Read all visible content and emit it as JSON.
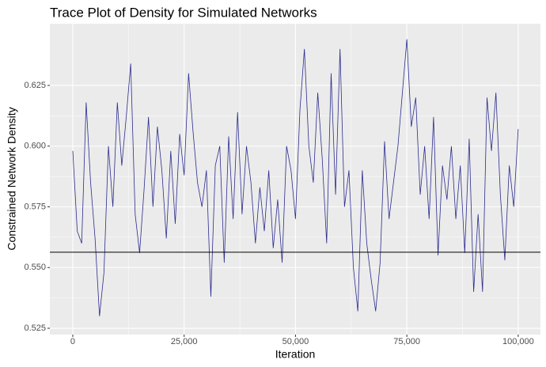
{
  "chart_data": {
    "type": "line",
    "title": "Trace Plot of Density for Simulated Networks",
    "x_label": "Iteration",
    "y_label": "Constrained Network Density",
    "x": [
      0,
      1000,
      2000,
      3000,
      4000,
      5000,
      6000,
      7000,
      8000,
      9000,
      10000,
      11000,
      12000,
      13000,
      14000,
      15000,
      16000,
      17000,
      18000,
      19000,
      20000,
      21000,
      22000,
      23000,
      24000,
      25000,
      26000,
      27000,
      28000,
      29000,
      30000,
      31000,
      32000,
      33000,
      34000,
      35000,
      36000,
      37000,
      38000,
      39000,
      40000,
      41000,
      42000,
      43000,
      44000,
      45000,
      46000,
      47000,
      48000,
      49000,
      50000,
      51000,
      52000,
      53000,
      54000,
      55000,
      56000,
      57000,
      58000,
      59000,
      60000,
      61000,
      62000,
      63000,
      64000,
      65000,
      66000,
      67000,
      68000,
      69000,
      70000,
      71000,
      72000,
      73000,
      74000,
      75000,
      76000,
      77000,
      78000,
      79000,
      80000,
      81000,
      82000,
      83000,
      84000,
      85000,
      86000,
      87000,
      88000,
      89000,
      90000,
      91000,
      92000,
      93000,
      94000,
      95000,
      96000,
      97000,
      98000,
      99000,
      100000
    ],
    "series": [
      {
        "name": "Density",
        "color": "#2b2c8e",
        "values": [
          0.598,
          0.565,
          0.56,
          0.618,
          0.585,
          0.562,
          0.53,
          0.548,
          0.6,
          0.575,
          0.618,
          0.592,
          0.612,
          0.634,
          0.572,
          0.556,
          0.582,
          0.612,
          0.575,
          0.608,
          0.59,
          0.562,
          0.598,
          0.568,
          0.605,
          0.588,
          0.63,
          0.606,
          0.585,
          0.575,
          0.59,
          0.538,
          0.592,
          0.6,
          0.552,
          0.604,
          0.57,
          0.614,
          0.572,
          0.6,
          0.585,
          0.56,
          0.583,
          0.565,
          0.59,
          0.558,
          0.578,
          0.552,
          0.6,
          0.59,
          0.57,
          0.615,
          0.64,
          0.6,
          0.585,
          0.622,
          0.595,
          0.56,
          0.63,
          0.58,
          0.64,
          0.575,
          0.59,
          0.55,
          0.532,
          0.59,
          0.56,
          0.545,
          0.532,
          0.552,
          0.602,
          0.57,
          0.585,
          0.6,
          0.622,
          0.644,
          0.608,
          0.62,
          0.58,
          0.6,
          0.57,
          0.612,
          0.555,
          0.592,
          0.578,
          0.6,
          0.57,
          0.592,
          0.556,
          0.603,
          0.54,
          0.572,
          0.54,
          0.62,
          0.598,
          0.622,
          0.58,
          0.553,
          0.592,
          0.575,
          0.607
        ]
      }
    ],
    "hline": 0.5563,
    "xlim": [
      -5150,
      105000
    ],
    "ylim": [
      0.5224,
      0.6504
    ],
    "xticks": [
      0,
      {
        "value": 25000,
        "label": "25,000"
      },
      {
        "value": 50000,
        "label": "50,000"
      },
      {
        "value": 75000,
        "label": "75,000"
      },
      {
        "value": 100000,
        "label": "100,000"
      }
    ],
    "yticks": [
      0.525,
      {
        "value": 0.55,
        "label": "0.550"
      },
      0.575,
      {
        "value": 0.6,
        "label": "0.600"
      },
      0.625
    ],
    "grid": true,
    "minor_grid": true
  }
}
